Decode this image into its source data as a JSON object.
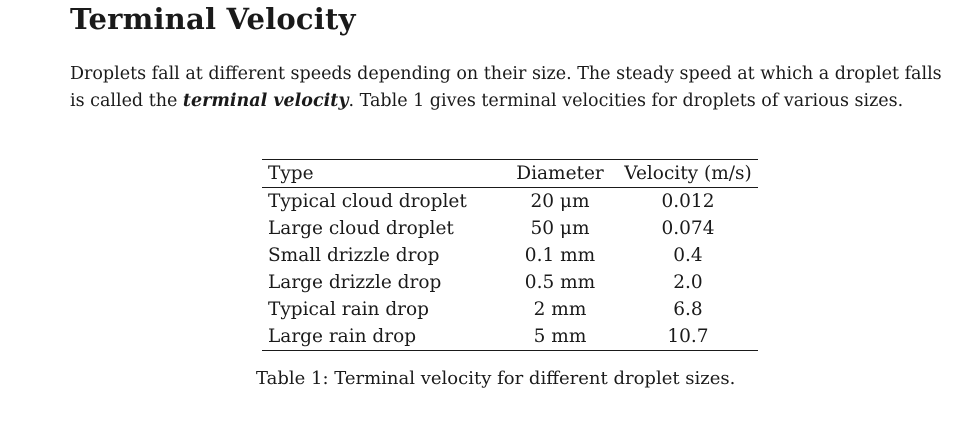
{
  "title": "Terminal Velocity",
  "intro": {
    "before": "Droplets fall at different speeds depending on their size. The steady speed at which a droplet falls is called the ",
    "term": "terminal velocity",
    "after": ". Table 1 gives terminal velocities for droplets of various sizes."
  },
  "table": {
    "headers": [
      "Type",
      "Diameter",
      "Velocity (m/s)"
    ],
    "rows": [
      {
        "type": "Typical cloud droplet",
        "diameter": "20 μm",
        "velocity": "0.012"
      },
      {
        "type": "Large cloud droplet",
        "diameter": "50 μm",
        "velocity": "0.074"
      },
      {
        "type": "Small drizzle drop",
        "diameter": "0.1 mm",
        "velocity": "0.4"
      },
      {
        "type": "Large drizzle drop",
        "diameter": "0.5 mm",
        "velocity": "2.0"
      },
      {
        "type": "Typical rain drop",
        "diameter": "2 mm",
        "velocity": "6.8"
      },
      {
        "type": "Large rain drop",
        "diameter": "5 mm",
        "velocity": "10.7"
      }
    ]
  },
  "caption": "Table 1: Terminal velocity for different droplet sizes."
}
